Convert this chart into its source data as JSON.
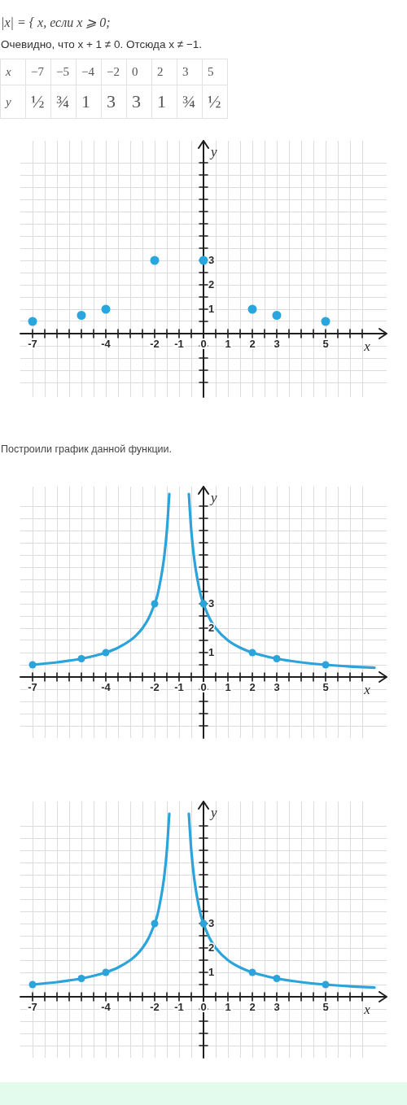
{
  "chart_data": [
    {
      "type": "other",
      "annotations": [
        "|x| = { x, если x ⩾ 0;",
        "Очевидно, что x + 1 ≠ 0. Отсюда x ≠ −1."
      ],
      "xlabel": "x",
      "ylabel": "y",
      "categories": [
        "−7",
        "−5",
        "−4",
        "−2",
        "0",
        "2",
        "3",
        "5"
      ],
      "value_labels": [
        "½",
        "¾",
        "1",
        "3",
        "3",
        "1",
        "¾",
        "½"
      ]
    },
    {
      "type": "scatter",
      "xlabel": "x",
      "ylabel": "y",
      "x": [
        -7,
        -5,
        -4,
        -2,
        0,
        2,
        3,
        5
      ],
      "values": [
        0.5,
        0.75,
        1,
        3,
        3,
        1,
        0.75,
        0.5
      ],
      "color": "#27a6e0",
      "marker": "circle",
      "grid": true,
      "xlim": [
        -7.5,
        7.5
      ],
      "xticks": [
        -7,
        {
          "value": -6.5,
          "label": null
        },
        {
          "value": -6,
          "label": null
        },
        {
          "value": -5.5,
          "label": null
        },
        {
          "value": -5,
          "label": null
        },
        {
          "value": -4.5,
          "label": null
        },
        -4,
        {
          "value": -3.5,
          "label": null
        },
        {
          "value": -3,
          "label": null
        },
        {
          "value": -2.5,
          "label": null
        },
        -2,
        {
          "value": -1.5,
          "label": null
        },
        -1,
        {
          "value": -0.5,
          "label": null
        },
        0,
        {
          "value": 0.5,
          "label": null
        },
        1,
        {
          "value": 1.5,
          "label": null
        },
        2,
        {
          "value": 2.5,
          "label": null
        },
        3,
        {
          "value": 3.5,
          "label": null
        },
        {
          "value": 4,
          "label": null
        },
        {
          "value": 4.5,
          "label": null
        },
        5,
        {
          "value": 5.5,
          "label": null
        },
        {
          "value": 6,
          "label": null
        },
        {
          "value": 6.5,
          "label": null
        }
      ],
      "ylim": [
        -2.6,
        7.9
      ],
      "yticks": [
        {
          "value": -2,
          "label": null
        },
        {
          "value": -1.5,
          "label": null
        },
        {
          "value": -1,
          "label": null
        },
        {
          "value": -0.5,
          "label": null
        },
        {
          "value": 0,
          "label": null
        },
        {
          "value": 0.5,
          "label": null
        },
        1,
        {
          "value": 1.5,
          "label": null
        },
        2,
        {
          "value": 2.5,
          "label": null
        },
        3,
        {
          "value": 3.5,
          "label": null
        },
        {
          "value": 4,
          "label": null
        },
        {
          "value": 4.5,
          "label": null
        },
        {
          "value": 5,
          "label": null
        },
        {
          "value": 5.5,
          "label": null
        },
        {
          "value": 6,
          "label": null
        },
        {
          "value": 6.5,
          "label": null
        },
        {
          "value": 7,
          "label": null
        }
      ]
    },
    {
      "type": "line",
      "title": "Построили график данной функции.",
      "xlabel": "x",
      "ylabel": "y",
      "marker": "circle",
      "grid": true,
      "series": [
        {
          "color": "#2ba3db",
          "marker": "none",
          "x": [
            -7,
            -6.5,
            -6,
            -5.5,
            -5,
            -4.5,
            -4,
            -3.5,
            -3,
            -2.75,
            -2.5,
            -2.25,
            -2,
            -1.9,
            -1.8,
            -1.7,
            -1.6,
            -1.5,
            -1.4
          ],
          "values": [
            0.5,
            0.55,
            0.6,
            0.67,
            0.75,
            0.86,
            1,
            1.2,
            1.5,
            1.71,
            2,
            2.4,
            3,
            3.3,
            3.75,
            4.3,
            5,
            6,
            7.5
          ]
        },
        {
          "color": "#2ba3db",
          "marker": "none",
          "x": [
            -0.6,
            -0.55,
            -0.5,
            -0.4,
            -0.3,
            -0.2,
            -0.1,
            0,
            0.25,
            0.5,
            1,
            1.5,
            2,
            3,
            4,
            5,
            6,
            7
          ],
          "values": [
            7.5,
            6.7,
            6,
            5,
            4.3,
            3.75,
            3.3,
            3,
            2.4,
            2,
            1.5,
            1.2,
            1,
            0.75,
            0.6,
            0.5,
            0.43,
            0.38
          ]
        },
        {
          "type": "scatter",
          "color": "#2ba3db",
          "x": [
            -7,
            -5,
            -4,
            -2,
            0,
            2,
            3,
            5
          ],
          "values": [
            0.5,
            0.75,
            1,
            3,
            3,
            1,
            0.75,
            0.5
          ]
        }
      ],
      "xlim": [
        -7.5,
        7.5
      ],
      "xticks": [
        -7,
        {
          "value": -6.5,
          "label": null
        },
        {
          "value": -6,
          "label": null
        },
        {
          "value": -5.5,
          "label": null
        },
        {
          "value": -5,
          "label": null
        },
        {
          "value": -4.5,
          "label": null
        },
        -4,
        {
          "value": -3.5,
          "label": null
        },
        {
          "value": -3,
          "label": null
        },
        {
          "value": -2.5,
          "label": null
        },
        -2,
        {
          "value": -1.5,
          "label": null
        },
        -1,
        {
          "value": -0.5,
          "label": null
        },
        0,
        {
          "value": 0.5,
          "label": null
        },
        1,
        {
          "value": 1.5,
          "label": null
        },
        2,
        {
          "value": 2.5,
          "label": null
        },
        3,
        {
          "value": 3.5,
          "label": null
        },
        {
          "value": 4,
          "label": null
        },
        {
          "value": 4.5,
          "label": null
        },
        5,
        {
          "value": 5.5,
          "label": null
        },
        {
          "value": 6,
          "label": null
        },
        {
          "value": 6.5,
          "label": null
        }
      ],
      "ylim": [
        -2.5,
        7.8
      ],
      "yticks": [
        {
          "value": -2,
          "label": null
        },
        {
          "value": -1.5,
          "label": null
        },
        {
          "value": -1,
          "label": null
        },
        {
          "value": -0.5,
          "label": null
        },
        {
          "value": 0,
          "label": null
        },
        {
          "value": 0.5,
          "label": null
        },
        1,
        {
          "value": 1.5,
          "label": null
        },
        2,
        {
          "value": 2.5,
          "label": null
        },
        3,
        {
          "value": 3.5,
          "label": null
        },
        {
          "value": 4,
          "label": null
        },
        {
          "value": 4.5,
          "label": null
        },
        {
          "value": 5,
          "label": null
        },
        {
          "value": 5.5,
          "label": null
        },
        {
          "value": 6,
          "label": null
        },
        {
          "value": 6.5,
          "label": null
        },
        {
          "value": 7,
          "label": null
        }
      ]
    },
    {
      "type": "line",
      "xlabel": "x",
      "ylabel": "y",
      "marker": "circle",
      "grid": true,
      "series": [
        {
          "color": "#2ba3db",
          "marker": "none",
          "x": [
            -7,
            -6.5,
            -6,
            -5.5,
            -5,
            -4.5,
            -4,
            -3.5,
            -3,
            -2.75,
            -2.5,
            -2.25,
            -2,
            -1.9,
            -1.8,
            -1.7,
            -1.6,
            -1.5,
            -1.4
          ],
          "values": [
            0.5,
            0.55,
            0.6,
            0.67,
            0.75,
            0.86,
            1,
            1.2,
            1.5,
            1.71,
            2,
            2.4,
            3,
            3.3,
            3.75,
            4.3,
            5,
            6,
            7.5
          ]
        },
        {
          "color": "#2ba3db",
          "marker": "none",
          "x": [
            -0.6,
            -0.55,
            -0.5,
            -0.4,
            -0.3,
            -0.2,
            -0.1,
            0,
            0.25,
            0.5,
            1,
            1.5,
            2,
            3,
            4,
            5,
            6,
            7
          ],
          "values": [
            7.5,
            6.7,
            6,
            5,
            4.3,
            3.75,
            3.3,
            3,
            2.4,
            2,
            1.5,
            1.2,
            1,
            0.75,
            0.6,
            0.5,
            0.43,
            0.38
          ]
        },
        {
          "type": "scatter",
          "color": "#2ba3db",
          "x": [
            -7,
            -5,
            -4,
            -2,
            0,
            2,
            3,
            5
          ],
          "values": [
            0.5,
            0.75,
            1,
            3,
            3,
            1,
            0.75,
            0.5
          ]
        }
      ],
      "xlim": [
        -7.5,
        7.5
      ],
      "xticks": [
        -7,
        {
          "value": -6.5,
          "label": null
        },
        {
          "value": -6,
          "label": null
        },
        {
          "value": -5.5,
          "label": null
        },
        {
          "value": -5,
          "label": null
        },
        {
          "value": -4.5,
          "label": null
        },
        -4,
        {
          "value": -3.5,
          "label": null
        },
        {
          "value": -3,
          "label": null
        },
        {
          "value": -2.5,
          "label": null
        },
        -2,
        {
          "value": -1.5,
          "label": null
        },
        -1,
        {
          "value": -0.5,
          "label": null
        },
        0,
        {
          "value": 0.5,
          "label": null
        },
        1,
        {
          "value": 1.5,
          "label": null
        },
        2,
        {
          "value": 2.5,
          "label": null
        },
        3,
        {
          "value": 3.5,
          "label": null
        },
        {
          "value": 4,
          "label": null
        },
        {
          "value": 4.5,
          "label": null
        },
        5,
        {
          "value": 5.5,
          "label": null
        },
        {
          "value": 6,
          "label": null
        },
        {
          "value": 6.5,
          "label": null
        }
      ],
      "ylim": [
        -2.5,
        8
      ],
      "yticks": [
        {
          "value": -2,
          "label": null
        },
        {
          "value": -1.5,
          "label": null
        },
        {
          "value": -1,
          "label": null
        },
        {
          "value": -0.5,
          "label": null
        },
        {
          "value": 0,
          "label": null
        },
        {
          "value": 0.5,
          "label": null
        },
        1,
        {
          "value": 1.5,
          "label": null
        },
        2,
        {
          "value": 2.5,
          "label": null
        },
        3,
        {
          "value": 3.5,
          "label": null
        },
        {
          "value": 4,
          "label": null
        },
        {
          "value": 4.5,
          "label": null
        },
        {
          "value": 5,
          "label": null
        },
        {
          "value": 5.5,
          "label": null
        },
        {
          "value": 6,
          "label": null
        },
        {
          "value": 6.5,
          "label": null
        },
        {
          "value": 7,
          "label": null
        }
      ]
    }
  ]
}
